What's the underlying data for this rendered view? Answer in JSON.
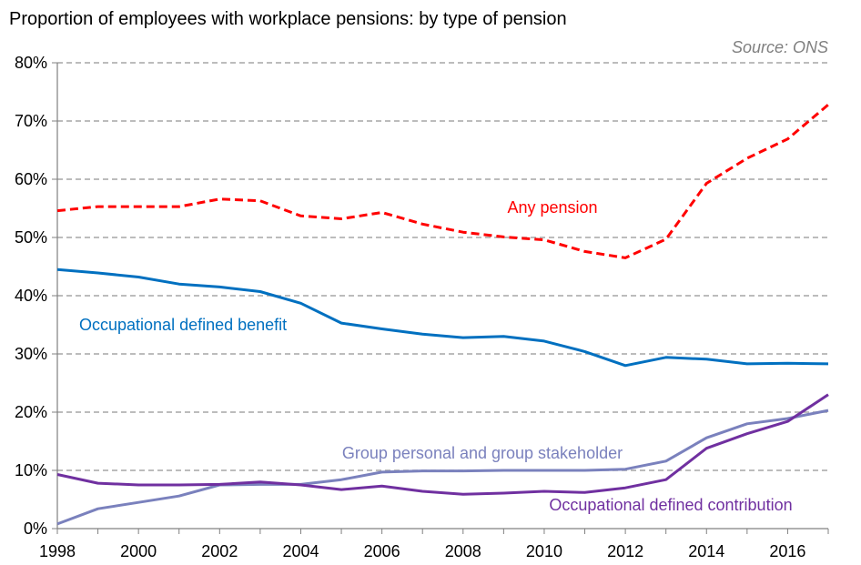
{
  "chart_data": {
    "type": "line",
    "title": "Proportion of employees with workplace pensions: by type of pension",
    "source": "Source: ONS",
    "xlabel": "",
    "ylabel": "",
    "xlim": [
      1998,
      2017
    ],
    "ylim": [
      0,
      80
    ],
    "x_ticks": [
      "1998",
      "2000",
      "2002",
      "2004",
      "2006",
      "2008",
      "2010",
      "2012",
      "2014",
      "2016"
    ],
    "y_ticks": [
      "0%",
      "10%",
      "20%",
      "30%",
      "40%",
      "50%",
      "60%",
      "70%",
      "80%"
    ],
    "grid": "horizontal dashed",
    "x": [
      1998,
      1999,
      2000,
      2001,
      2002,
      2003,
      2004,
      2005,
      2006,
      2007,
      2008,
      2009,
      2010,
      2011,
      2012,
      2013,
      2014,
      2015,
      2016,
      2017
    ],
    "series": [
      {
        "name": "Any pension",
        "color": "#ff0000",
        "dash": "dashed",
        "values": [
          54.6,
          55.3,
          55.3,
          55.3,
          56.6,
          56.3,
          53.7,
          53.2,
          54.3,
          52.3,
          50.9,
          50.1,
          49.6,
          47.6,
          46.5,
          49.7,
          59.3,
          63.6,
          66.9,
          72.8
        ]
      },
      {
        "name": "Occupational defined benefit",
        "color": "#0070c0",
        "dash": "solid",
        "values": [
          44.5,
          43.9,
          43.2,
          42.0,
          41.5,
          40.7,
          38.7,
          35.3,
          34.3,
          33.4,
          32.8,
          33.0,
          32.2,
          30.4,
          28.0,
          29.4,
          29.1,
          28.3,
          28.4,
          28.3
        ]
      },
      {
        "name": "Group personal and group stakeholder",
        "color": "#7a81bd",
        "dash": "solid",
        "values": [
          0.8,
          3.4,
          4.5,
          5.6,
          7.5,
          7.6,
          7.6,
          8.4,
          9.7,
          9.9,
          9.9,
          10.0,
          10.0,
          10.0,
          10.2,
          11.6,
          15.6,
          18.0,
          18.9,
          20.3
        ]
      },
      {
        "name": "Occupational defined contribution",
        "color": "#7030a0",
        "dash": "solid",
        "values": [
          9.3,
          7.8,
          7.5,
          7.5,
          7.6,
          8.0,
          7.5,
          6.7,
          7.3,
          6.4,
          5.9,
          6.1,
          6.4,
          6.2,
          7.0,
          8.4,
          13.8,
          16.3,
          18.4,
          23.0
        ]
      }
    ]
  }
}
